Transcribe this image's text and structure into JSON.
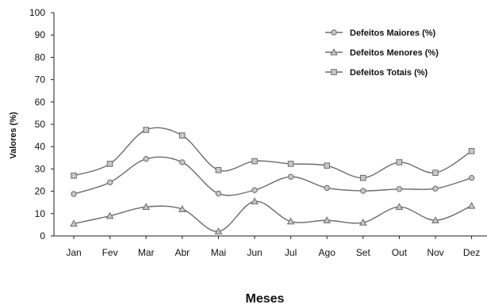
{
  "chart_data": {
    "type": "line",
    "categories": [
      "Jan",
      "Fev",
      "Mar",
      "Abr",
      "Mai",
      "Jun",
      "Jul",
      "Ago",
      "Set",
      "Out",
      "Nov",
      "Dez"
    ],
    "series": [
      {
        "name": "Defeitos Maiores (%)",
        "marker": "circle",
        "values": [
          18.8,
          24.0,
          34.5,
          33.0,
          19.0,
          20.5,
          26.5,
          21.5,
          20.2,
          21.0,
          21.2,
          26.0
        ]
      },
      {
        "name": "Defeitos Menores (%)",
        "marker": "triangle",
        "values": [
          5.5,
          9.0,
          13.0,
          12.0,
          2.0,
          15.5,
          6.5,
          7.0,
          6.0,
          13.0,
          7.0,
          13.5
        ]
      },
      {
        "name": "Defeitos Totais (%)",
        "marker": "square",
        "values": [
          27.0,
          32.3,
          47.5,
          45.0,
          29.5,
          33.5,
          32.3,
          31.5,
          26.0,
          33.0,
          28.3,
          38.0
        ]
      }
    ],
    "title": "",
    "xlabel": "Meses",
    "ylabel": "Valores (%)",
    "ylim": [
      0,
      100
    ],
    "yticks": [
      0,
      10,
      20,
      30,
      40,
      50,
      60,
      70,
      80,
      90,
      100
    ],
    "grid": false,
    "legend": "top-right",
    "colors": {
      "line": "#6b6b6b",
      "marker_fill": "#c8c8c8",
      "axis": "#222222"
    }
  }
}
